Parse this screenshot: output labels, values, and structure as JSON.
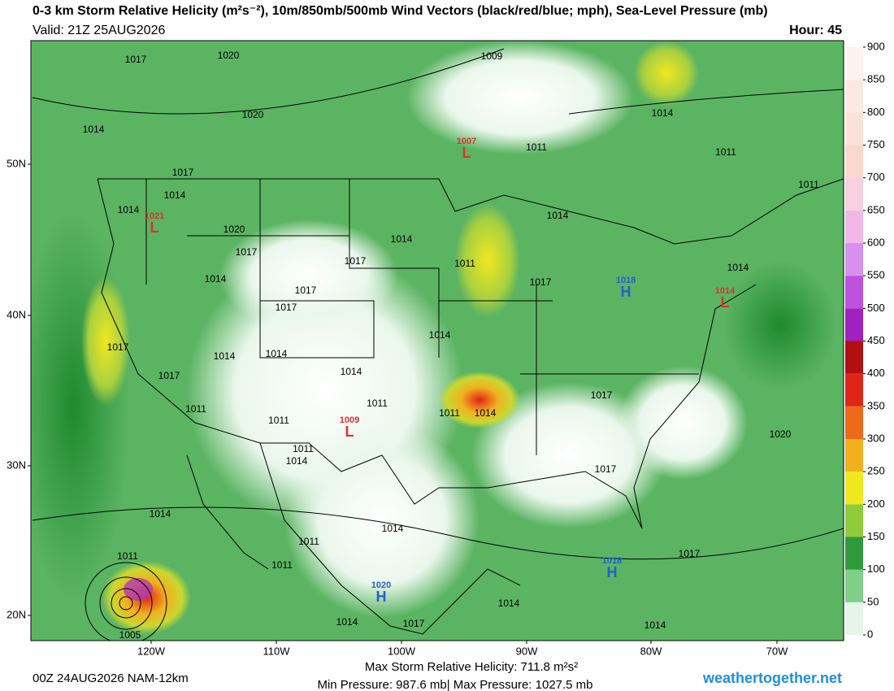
{
  "header": {
    "title": "0-3 km Storm Relative Helicity (m²s⁻²), 10m/850mb/500mb Wind Vectors (black/red/blue; mph), Sea-Level Pressure (mb)",
    "valid": "Valid: 21Z 25AUG2026",
    "hour": "Hour: 45"
  },
  "colorbar": {
    "ticks": [
      0,
      50,
      100,
      150,
      200,
      250,
      300,
      350,
      400,
      450,
      500,
      550,
      600,
      650,
      700,
      750,
      800,
      850,
      900
    ],
    "colors": [
      "#e6f5ea",
      "#7fcf8a",
      "#2e9a3c",
      "#8fcc3a",
      "#f0e81e",
      "#f2b01e",
      "#ee6a18",
      "#e02418",
      "#b01010",
      "#a020c0",
      "#c050e0",
      "#d890f0",
      "#f0b8e8",
      "#f8d0e0",
      "#fad8d0",
      "#fbe2d8",
      "#fceae2",
      "#fdf2ee"
    ]
  },
  "axes": {
    "lat_labels": [
      "50N",
      "40N",
      "30N",
      "20N"
    ],
    "lon_labels": [
      "120W",
      "110W",
      "100W",
      "90W",
      "80W",
      "70W"
    ]
  },
  "pressure_labels": [
    1017,
    1020,
    1009,
    1020,
    1014,
    1011,
    1017,
    1014,
    1014,
    1014,
    1014,
    1011,
    1011,
    1020,
    1017,
    1014,
    1017,
    1011,
    1017,
    1014,
    1017,
    1014,
    1017,
    1014,
    1017,
    1014,
    1014,
    1014,
    1017,
    1011,
    1011,
    1011,
    1011,
    1014,
    1017,
    1011,
    1014,
    1020,
    1017,
    1014,
    1014,
    1011,
    1011,
    1017,
    1011,
    1014,
    1005,
    1014,
    1017,
    1014
  ],
  "centers": [
    {
      "value": "1007",
      "letter": "L",
      "color": "#e03030"
    },
    {
      "value": "1021",
      "letter": "L",
      "color": "#e03030"
    },
    {
      "value": "1018",
      "letter": "H",
      "color": "#2060d0"
    },
    {
      "value": "1014",
      "letter": "L",
      "color": "#e03030"
    },
    {
      "value": "1009",
      "letter": "L",
      "color": "#e03030"
    },
    {
      "value": "1018",
      "letter": "H",
      "color": "#2060d0"
    },
    {
      "value": "1020",
      "letter": "H",
      "color": "#2060d0"
    }
  ],
  "footer": {
    "run": "00Z 24AUG2026 NAM-12km",
    "max_helicity": "Max Storm Relative Helicity: 711.8 m²s²",
    "pressures": "Min Pressure: 987.6 mb| Max Pressure: 1027.5 mb",
    "site": "weathertogether.net"
  }
}
